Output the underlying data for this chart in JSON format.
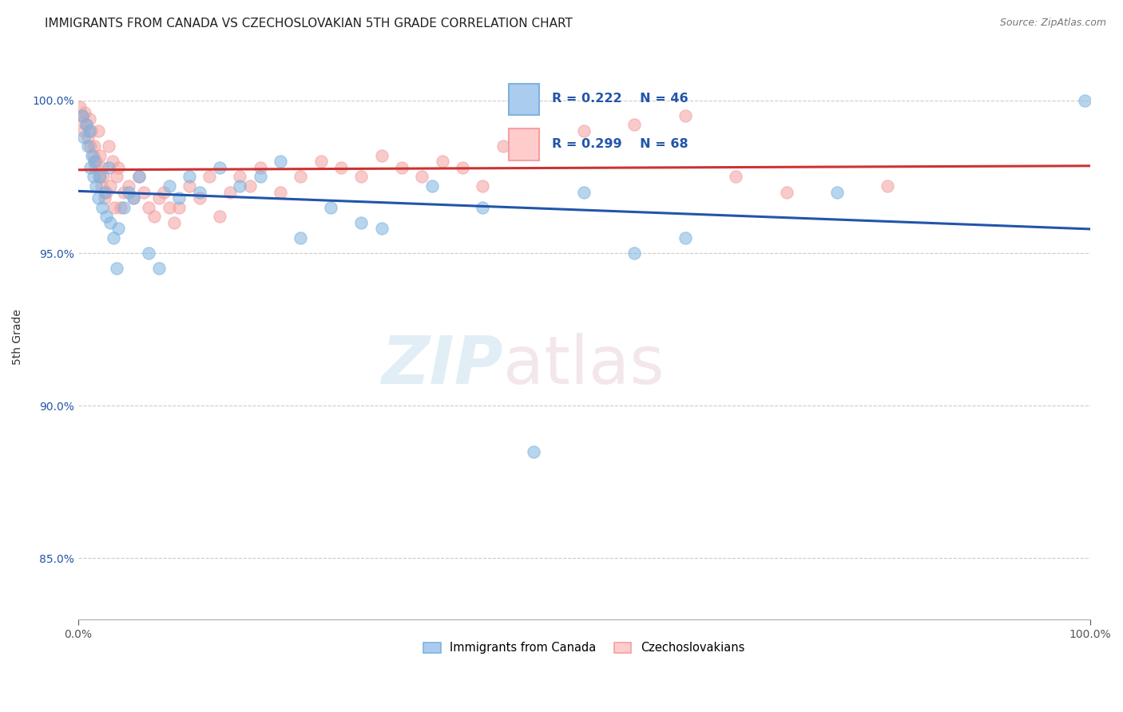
{
  "title": "IMMIGRANTS FROM CANADA VS CZECHOSLOVAKIAN 5TH GRADE CORRELATION CHART",
  "source": "Source: ZipAtlas.com",
  "ylabel": "5th Grade",
  "xlabel": "",
  "xlim": [
    0.0,
    100.0
  ],
  "ylim": [
    83.0,
    101.5
  ],
  "yticks": [
    85.0,
    90.0,
    95.0,
    100.0
  ],
  "ytick_labels": [
    "85.0%",
    "90.0%",
    "95.0%",
    "100.0%"
  ],
  "blue_R": 0.222,
  "blue_N": 46,
  "pink_R": 0.299,
  "pink_N": 68,
  "blue_color": "#7EB3E0",
  "pink_color": "#F4A0A0",
  "blue_line_color": "#2255AA",
  "pink_line_color": "#CC3333",
  "legend_blue_label": "Immigrants from Canada",
  "legend_pink_label": "Czechoslovakians",
  "blue_x": [
    0.4,
    0.6,
    0.8,
    1.0,
    1.1,
    1.2,
    1.4,
    1.5,
    1.6,
    1.8,
    2.0,
    2.2,
    2.4,
    2.6,
    2.8,
    3.0,
    3.2,
    3.5,
    3.8,
    4.0,
    4.5,
    5.0,
    5.5,
    6.0,
    7.0,
    8.0,
    9.0,
    10.0,
    11.0,
    12.0,
    14.0,
    16.0,
    18.0,
    20.0,
    22.0,
    25.0,
    28.0,
    30.0,
    35.0,
    40.0,
    45.0,
    50.0,
    55.0,
    60.0,
    75.0,
    99.5
  ],
  "blue_y": [
    99.5,
    98.8,
    99.2,
    98.5,
    99.0,
    97.8,
    98.2,
    97.5,
    98.0,
    97.2,
    96.8,
    97.5,
    96.5,
    97.0,
    96.2,
    97.8,
    96.0,
    95.5,
    94.5,
    95.8,
    96.5,
    97.0,
    96.8,
    97.5,
    95.0,
    94.5,
    97.2,
    96.8,
    97.5,
    97.0,
    97.8,
    97.2,
    97.5,
    98.0,
    95.5,
    96.5,
    96.0,
    95.8,
    97.2,
    96.5,
    88.5,
    97.0,
    95.0,
    95.5,
    97.0,
    100.0
  ],
  "pink_x": [
    0.2,
    0.4,
    0.5,
    0.6,
    0.7,
    0.8,
    1.0,
    1.1,
    1.2,
    1.3,
    1.5,
    1.6,
    1.7,
    1.8,
    2.0,
    2.1,
    2.2,
    2.3,
    2.4,
    2.5,
    2.6,
    2.8,
    3.0,
    3.2,
    3.4,
    3.6,
    3.8,
    4.0,
    4.2,
    4.5,
    5.0,
    5.5,
    6.0,
    6.5,
    7.0,
    7.5,
    8.0,
    8.5,
    9.0,
    9.5,
    10.0,
    11.0,
    12.0,
    13.0,
    14.0,
    15.0,
    16.0,
    17.0,
    18.0,
    20.0,
    22.0,
    24.0,
    26.0,
    28.0,
    30.0,
    32.0,
    34.0,
    36.0,
    38.0,
    40.0,
    42.0,
    44.0,
    50.0,
    55.0,
    60.0,
    65.0,
    70.0,
    80.0
  ],
  "pink_y": [
    99.8,
    99.5,
    99.3,
    99.0,
    99.6,
    99.2,
    98.8,
    99.4,
    98.5,
    99.0,
    98.2,
    98.5,
    97.8,
    98.0,
    99.0,
    97.5,
    98.2,
    97.2,
    97.8,
    97.5,
    96.8,
    97.0,
    98.5,
    97.2,
    98.0,
    96.5,
    97.5,
    97.8,
    96.5,
    97.0,
    97.2,
    96.8,
    97.5,
    97.0,
    96.5,
    96.2,
    96.8,
    97.0,
    96.5,
    96.0,
    96.5,
    97.2,
    96.8,
    97.5,
    96.2,
    97.0,
    97.5,
    97.2,
    97.8,
    97.0,
    97.5,
    98.0,
    97.8,
    97.5,
    98.2,
    97.8,
    97.5,
    98.0,
    97.8,
    97.2,
    98.5,
    98.8,
    99.0,
    99.2,
    99.5,
    97.5,
    97.0,
    97.2
  ],
  "blue_size": 120,
  "pink_size": 120,
  "background_color": "#FFFFFF",
  "grid_color": "#CCCCCC",
  "grid_linestyle": "--",
  "title_fontsize": 11,
  "axis_label_fontsize": 10,
  "tick_fontsize": 10,
  "source_fontsize": 9,
  "legend_box_blue_face": "#AACCEE",
  "legend_box_pink_face": "#FFCCCC",
  "legend_text_color": "#2255AA",
  "tick_color_y": "#2255AA",
  "tick_color_x": "#555555"
}
